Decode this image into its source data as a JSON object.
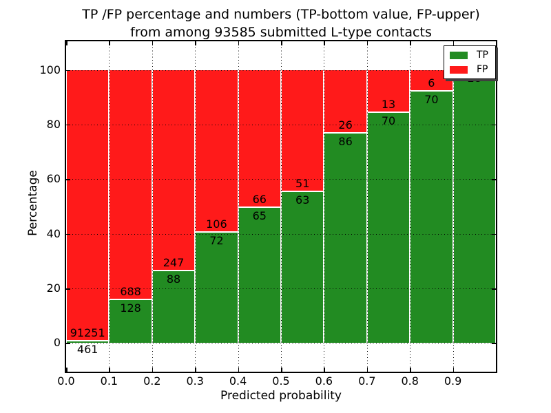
{
  "chart_data": {
    "type": "bar",
    "stacked": true,
    "title_line1": "TP /FP percentage and numbers (TP-bottom value, FP-upper)",
    "title_line2": "from among 93585 submitted L-type contacts",
    "xlabel": "Predicted probability",
    "ylabel": "Percentage",
    "total_submitted": 93585,
    "xlim": [
      0.0,
      1.0
    ],
    "ylim": [
      -10.5,
      110.5
    ],
    "x_tick_labels": [
      "0.0",
      "0.1",
      "0.2",
      "0.3",
      "0.4",
      "0.5",
      "0.6",
      "0.7",
      "0.8",
      "0.9"
    ],
    "y_ticks": [
      0,
      20,
      40,
      60,
      80,
      100
    ],
    "grid": "dotted",
    "bins": [
      {
        "x0": 0.0,
        "x1": 0.1,
        "tp": 461,
        "fp": 91251,
        "tp_pct": 0.5
      },
      {
        "x0": 0.1,
        "x1": 0.2,
        "tp": 128,
        "fp": 688,
        "tp_pct": 15.7
      },
      {
        "x0": 0.2,
        "x1": 0.3,
        "tp": 88,
        "fp": 247,
        "tp_pct": 26.3
      },
      {
        "x0": 0.3,
        "x1": 0.4,
        "tp": 72,
        "fp": 106,
        "tp_pct": 40.4
      },
      {
        "x0": 0.4,
        "x1": 0.5,
        "tp": 65,
        "fp": 66,
        "tp_pct": 49.6
      },
      {
        "x0": 0.5,
        "x1": 0.6,
        "tp": 63,
        "fp": 51,
        "tp_pct": 55.3
      },
      {
        "x0": 0.6,
        "x1": 0.7,
        "tp": 86,
        "fp": 26,
        "tp_pct": 76.8
      },
      {
        "x0": 0.7,
        "x1": 0.8,
        "tp": 70,
        "fp": 13,
        "tp_pct": 84.3
      },
      {
        "x0": 0.8,
        "x1": 0.9,
        "tp": 70,
        "fp": 6,
        "tp_pct": 92.1
      },
      {
        "x0": 0.9,
        "x1": 1.0,
        "tp": 28,
        "fp": 0,
        "tp_pct": 100.0
      }
    ],
    "legend": {
      "position": "upper right",
      "entries": [
        {
          "label": "TP",
          "color": "#228b22"
        },
        {
          "label": "FP",
          "color": "#ff1a1a"
        }
      ]
    },
    "colors": {
      "tp": "#228b22",
      "fp": "#ff1a1a",
      "grid": "#000000",
      "background": "#ffffff"
    }
  }
}
